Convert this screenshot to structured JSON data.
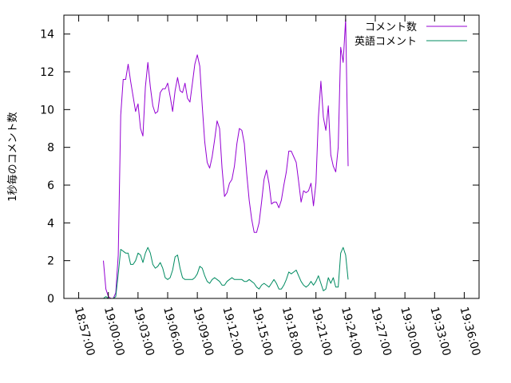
{
  "chart_data": {
    "type": "line",
    "ylabel": "1秒毎のコメント数",
    "ylim": [
      0,
      15
    ],
    "y_ticks": [
      0,
      2,
      4,
      6,
      8,
      10,
      12,
      14
    ],
    "xlim": [
      "18:55:30",
      "19:37:30"
    ],
    "x_ticks": [
      "18:57:00",
      "19:00:00",
      "19:03:00",
      "19:06:00",
      "19:09:00",
      "19:12:00",
      "19:15:00",
      "19:18:00",
      "19:21:00",
      "19:24:00",
      "19:27:00",
      "19:30:00",
      "19:33:00",
      "19:36:00"
    ],
    "grid": false,
    "legend_position": "top-right",
    "series": [
      {
        "name": "コメント数",
        "color": "#9400d3",
        "points": [
          [
            "18:59:30",
            2.0
          ],
          [
            "18:59:45",
            0.5
          ],
          [
            "19:00:00",
            0.1
          ],
          [
            "19:00:15",
            0.0
          ],
          [
            "19:00:30",
            0.0
          ],
          [
            "19:00:45",
            0.3
          ],
          [
            "19:01:00",
            2.3
          ],
          [
            "19:01:15",
            9.7
          ],
          [
            "19:01:30",
            11.6
          ],
          [
            "19:01:45",
            11.6
          ],
          [
            "19:02:00",
            12.4
          ],
          [
            "19:02:15",
            11.5
          ],
          [
            "19:02:30",
            10.7
          ],
          [
            "19:02:45",
            9.9
          ],
          [
            "19:03:00",
            10.3
          ],
          [
            "19:03:15",
            9.0
          ],
          [
            "19:03:30",
            8.6
          ],
          [
            "19:03:45",
            11.2
          ],
          [
            "19:04:00",
            12.5
          ],
          [
            "19:04:15",
            11.2
          ],
          [
            "19:04:30",
            10.2
          ],
          [
            "19:04:45",
            9.8
          ],
          [
            "19:05:00",
            9.9
          ],
          [
            "19:05:15",
            10.9
          ],
          [
            "19:05:30",
            11.1
          ],
          [
            "19:05:45",
            11.1
          ],
          [
            "19:06:00",
            11.4
          ],
          [
            "19:06:15",
            10.7
          ],
          [
            "19:06:30",
            9.9
          ],
          [
            "19:06:45",
            11.0
          ],
          [
            "19:07:00",
            11.7
          ],
          [
            "19:07:15",
            11.0
          ],
          [
            "19:07:30",
            10.9
          ],
          [
            "19:07:45",
            11.4
          ],
          [
            "19:08:00",
            10.6
          ],
          [
            "19:08:15",
            10.4
          ],
          [
            "19:08:30",
            11.4
          ],
          [
            "19:08:45",
            12.4
          ],
          [
            "19:09:00",
            12.9
          ],
          [
            "19:09:15",
            12.3
          ],
          [
            "19:09:30",
            10.2
          ],
          [
            "19:09:45",
            8.3
          ],
          [
            "19:10:00",
            7.2
          ],
          [
            "19:10:15",
            6.9
          ],
          [
            "19:10:30",
            7.5
          ],
          [
            "19:10:45",
            8.4
          ],
          [
            "19:11:00",
            9.4
          ],
          [
            "19:11:15",
            9.0
          ],
          [
            "19:11:30",
            6.9
          ],
          [
            "19:11:45",
            5.4
          ],
          [
            "19:12:00",
            5.6
          ],
          [
            "19:12:15",
            6.1
          ],
          [
            "19:12:30",
            6.3
          ],
          [
            "19:12:45",
            7.0
          ],
          [
            "19:13:00",
            8.2
          ],
          [
            "19:13:15",
            9.0
          ],
          [
            "19:13:30",
            8.9
          ],
          [
            "19:13:45",
            8.2
          ],
          [
            "19:14:00",
            6.6
          ],
          [
            "19:14:15",
            5.2
          ],
          [
            "19:14:30",
            4.2
          ],
          [
            "19:14:45",
            3.5
          ],
          [
            "19:15:00",
            3.5
          ],
          [
            "19:15:15",
            4.0
          ],
          [
            "19:15:30",
            5.1
          ],
          [
            "19:15:45",
            6.3
          ],
          [
            "19:16:00",
            6.8
          ],
          [
            "19:16:15",
            6.1
          ],
          [
            "19:16:30",
            5.0
          ],
          [
            "19:16:45",
            5.1
          ],
          [
            "19:17:00",
            5.1
          ],
          [
            "19:17:15",
            4.8
          ],
          [
            "19:17:30",
            5.2
          ],
          [
            "19:17:45",
            6.0
          ],
          [
            "19:18:00",
            6.7
          ],
          [
            "19:18:15",
            7.8
          ],
          [
            "19:18:30",
            7.8
          ],
          [
            "19:18:45",
            7.5
          ],
          [
            "19:19:00",
            7.2
          ],
          [
            "19:19:15",
            6.2
          ],
          [
            "19:19:30",
            5.1
          ],
          [
            "19:19:45",
            5.7
          ],
          [
            "19:20:00",
            5.6
          ],
          [
            "19:20:15",
            5.7
          ],
          [
            "19:20:30",
            6.1
          ],
          [
            "19:20:45",
            4.9
          ],
          [
            "19:21:00",
            6.1
          ],
          [
            "19:21:15",
            9.6
          ],
          [
            "19:21:30",
            11.5
          ],
          [
            "19:21:45",
            9.6
          ],
          [
            "19:22:00",
            8.9
          ],
          [
            "19:22:15",
            10.2
          ],
          [
            "19:22:30",
            7.6
          ],
          [
            "19:22:45",
            7.0
          ],
          [
            "19:23:00",
            6.7
          ],
          [
            "19:23:15",
            8.0
          ],
          [
            "19:23:30",
            13.3
          ],
          [
            "19:23:45",
            12.5
          ],
          [
            "19:24:00",
            14.8
          ],
          [
            "19:24:15",
            7.0
          ]
        ]
      },
      {
        "name": "英語コメント",
        "color": "#008b61",
        "points": [
          [
            "18:59:30",
            0.0
          ],
          [
            "18:59:45",
            0.1
          ],
          [
            "19:00:00",
            0.0
          ],
          [
            "19:00:15",
            0.0
          ],
          [
            "19:00:30",
            0.0
          ],
          [
            "19:00:45",
            0.1
          ],
          [
            "19:01:00",
            1.3
          ],
          [
            "19:01:15",
            2.6
          ],
          [
            "19:01:30",
            2.5
          ],
          [
            "19:01:45",
            2.4
          ],
          [
            "19:02:00",
            2.4
          ],
          [
            "19:02:15",
            1.8
          ],
          [
            "19:02:30",
            1.8
          ],
          [
            "19:02:45",
            2.0
          ],
          [
            "19:03:00",
            2.4
          ],
          [
            "19:03:15",
            2.3
          ],
          [
            "19:03:30",
            1.9
          ],
          [
            "19:03:45",
            2.4
          ],
          [
            "19:04:00",
            2.7
          ],
          [
            "19:04:15",
            2.4
          ],
          [
            "19:04:30",
            1.8
          ],
          [
            "19:04:45",
            1.6
          ],
          [
            "19:05:00",
            1.7
          ],
          [
            "19:05:15",
            1.9
          ],
          [
            "19:05:30",
            1.6
          ],
          [
            "19:05:45",
            1.1
          ],
          [
            "19:06:00",
            1.0
          ],
          [
            "19:06:15",
            1.1
          ],
          [
            "19:06:30",
            1.5
          ],
          [
            "19:06:45",
            2.2
          ],
          [
            "19:07:00",
            2.3
          ],
          [
            "19:07:15",
            1.6
          ],
          [
            "19:07:30",
            1.1
          ],
          [
            "19:07:45",
            1.0
          ],
          [
            "19:08:00",
            1.0
          ],
          [
            "19:08:15",
            1.0
          ],
          [
            "19:08:30",
            1.0
          ],
          [
            "19:08:45",
            1.1
          ],
          [
            "19:09:00",
            1.3
          ],
          [
            "19:09:15",
            1.7
          ],
          [
            "19:09:30",
            1.6
          ],
          [
            "19:09:45",
            1.2
          ],
          [
            "19:10:00",
            0.9
          ],
          [
            "19:10:15",
            0.8
          ],
          [
            "19:10:30",
            1.0
          ],
          [
            "19:10:45",
            1.1
          ],
          [
            "19:11:00",
            1.0
          ],
          [
            "19:11:15",
            0.9
          ],
          [
            "19:11:30",
            0.7
          ],
          [
            "19:11:45",
            0.7
          ],
          [
            "19:12:00",
            0.9
          ],
          [
            "19:12:15",
            1.0
          ],
          [
            "19:12:30",
            1.1
          ],
          [
            "19:12:45",
            1.0
          ],
          [
            "19:13:00",
            1.0
          ],
          [
            "19:13:15",
            1.0
          ],
          [
            "19:13:30",
            1.0
          ],
          [
            "19:13:45",
            0.9
          ],
          [
            "19:14:00",
            0.9
          ],
          [
            "19:14:15",
            1.0
          ],
          [
            "19:14:30",
            0.9
          ],
          [
            "19:14:45",
            0.8
          ],
          [
            "19:15:00",
            0.6
          ],
          [
            "19:15:15",
            0.5
          ],
          [
            "19:15:30",
            0.7
          ],
          [
            "19:15:45",
            0.8
          ],
          [
            "19:16:00",
            0.7
          ],
          [
            "19:16:15",
            0.6
          ],
          [
            "19:16:30",
            0.8
          ],
          [
            "19:16:45",
            1.0
          ],
          [
            "19:17:00",
            0.8
          ],
          [
            "19:17:15",
            0.5
          ],
          [
            "19:17:30",
            0.5
          ],
          [
            "19:17:45",
            0.7
          ],
          [
            "19:18:00",
            1.0
          ],
          [
            "19:18:15",
            1.4
          ],
          [
            "19:18:30",
            1.3
          ],
          [
            "19:18:45",
            1.4
          ],
          [
            "19:19:00",
            1.5
          ],
          [
            "19:19:15",
            1.2
          ],
          [
            "19:19:30",
            0.9
          ],
          [
            "19:19:45",
            0.7
          ],
          [
            "19:20:00",
            0.6
          ],
          [
            "19:20:15",
            0.7
          ],
          [
            "19:20:30",
            0.9
          ],
          [
            "19:20:45",
            0.7
          ],
          [
            "19:21:00",
            0.9
          ],
          [
            "19:21:15",
            1.2
          ],
          [
            "19:21:30",
            0.8
          ],
          [
            "19:21:45",
            0.4
          ],
          [
            "19:22:00",
            0.5
          ],
          [
            "19:22:15",
            1.1
          ],
          [
            "19:22:30",
            0.8
          ],
          [
            "19:22:45",
            1.1
          ],
          [
            "19:23:00",
            0.6
          ],
          [
            "19:23:15",
            0.6
          ],
          [
            "19:23:30",
            2.4
          ],
          [
            "19:23:45",
            2.7
          ],
          [
            "19:24:00",
            2.3
          ],
          [
            "19:24:15",
            1.0
          ]
        ]
      }
    ]
  }
}
